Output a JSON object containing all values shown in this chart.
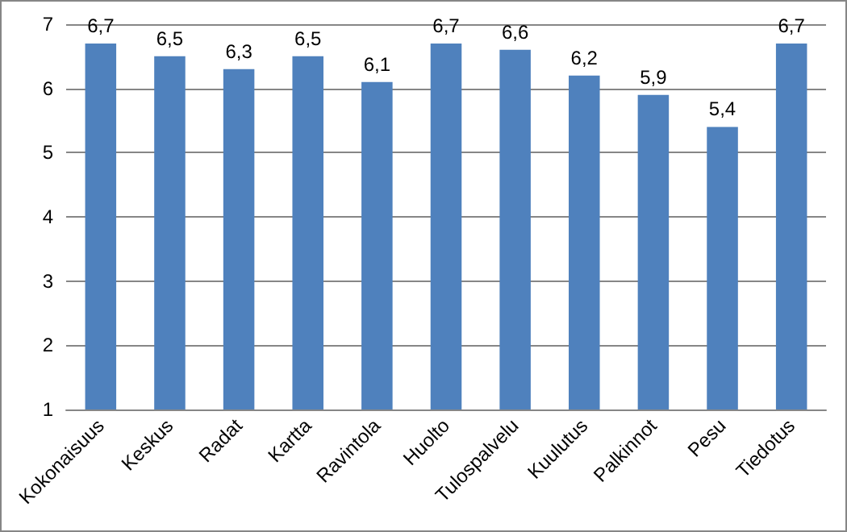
{
  "chart_data": {
    "type": "bar",
    "categories": [
      "Kokonaisuus",
      "Keskus",
      "Radat",
      "Kartta",
      "Ravintola",
      "Huolto",
      "Tulospalvelu",
      "Kuulutus",
      "Palkinnot",
      "Pesu",
      "Tiedotus"
    ],
    "values": [
      6.7,
      6.5,
      6.3,
      6.5,
      6.1,
      6.7,
      6.6,
      6.2,
      5.9,
      5.4,
      6.7
    ],
    "value_labels": [
      "6,7",
      "6,5",
      "6,3",
      "6,5",
      "6,1",
      "6,7",
      "6,6",
      "6,2",
      "5,9",
      "5,4",
      "6,7"
    ],
    "color": "#4f81bd",
    "ylim": [
      1,
      7
    ],
    "yticks": [
      1,
      2,
      3,
      4,
      5,
      6,
      7
    ],
    "grid": "y"
  }
}
